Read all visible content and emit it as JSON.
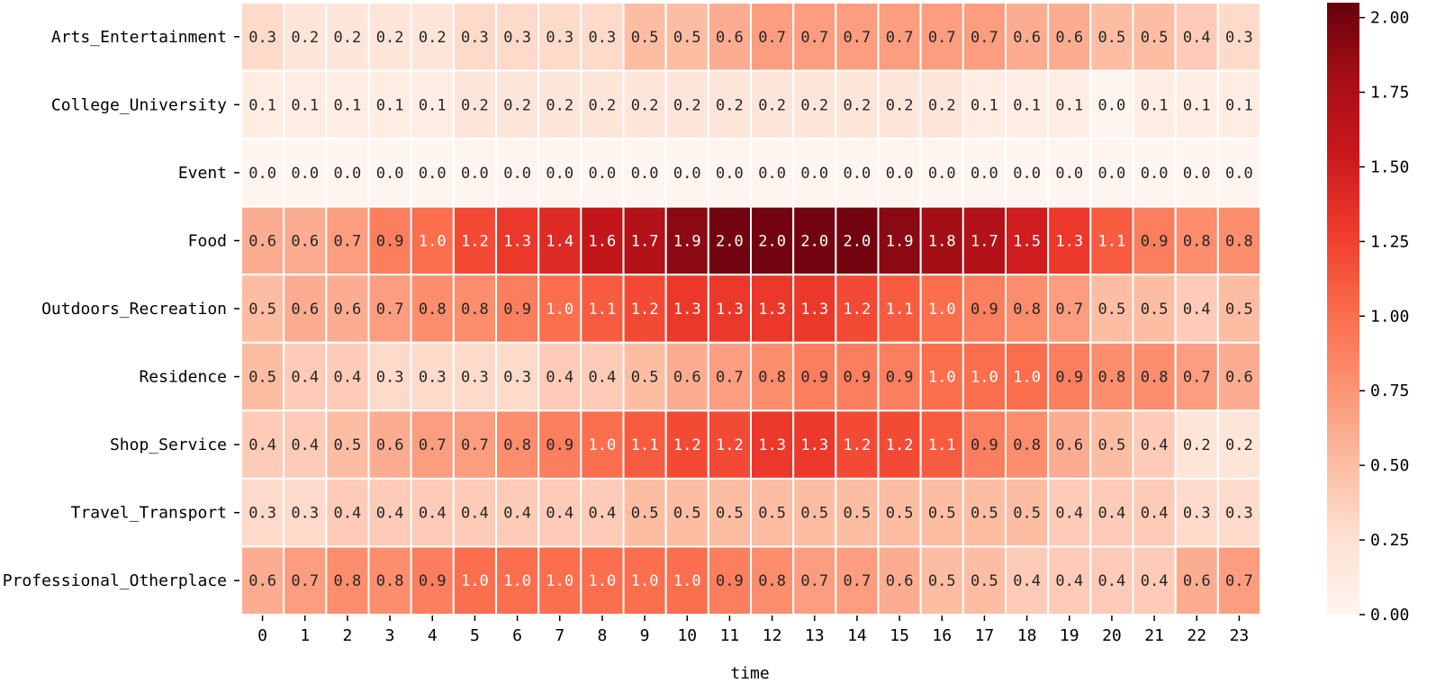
{
  "chart_data": {
    "type": "heatmap",
    "title": "",
    "xlabel": "time",
    "ylabel": "",
    "x_categories": [
      "0",
      "1",
      "2",
      "3",
      "4",
      "5",
      "6",
      "7",
      "8",
      "9",
      "10",
      "11",
      "12",
      "13",
      "14",
      "15",
      "16",
      "17",
      "18",
      "19",
      "20",
      "21",
      "22",
      "23"
    ],
    "y_categories": [
      "Arts_Entertainment",
      "College_University",
      "Event",
      "Food",
      "Outdoors_Recreation",
      "Residence",
      "Shop_Service",
      "Travel_Transport",
      "Professional_Otherplace"
    ],
    "values": [
      [
        0.3,
        0.2,
        0.2,
        0.2,
        0.2,
        0.3,
        0.3,
        0.3,
        0.3,
        0.5,
        0.5,
        0.6,
        0.7,
        0.7,
        0.7,
        0.7,
        0.7,
        0.7,
        0.6,
        0.6,
        0.5,
        0.5,
        0.4,
        0.3
      ],
      [
        0.1,
        0.1,
        0.1,
        0.1,
        0.1,
        0.2,
        0.2,
        0.2,
        0.2,
        0.2,
        0.2,
        0.2,
        0.2,
        0.2,
        0.2,
        0.2,
        0.2,
        0.1,
        0.1,
        0.1,
        0.0,
        0.1,
        0.1,
        0.1
      ],
      [
        0.0,
        0.0,
        0.0,
        0.0,
        0.0,
        0.0,
        0.0,
        0.0,
        0.0,
        0.0,
        0.0,
        0.0,
        0.0,
        0.0,
        0.0,
        0.0,
        0.0,
        0.0,
        0.0,
        0.0,
        0.0,
        0.0,
        0.0,
        0.0
      ],
      [
        0.6,
        0.6,
        0.7,
        0.9,
        1.0,
        1.2,
        1.3,
        1.4,
        1.6,
        1.7,
        1.9,
        2.0,
        2.0,
        2.0,
        2.0,
        1.9,
        1.8,
        1.7,
        1.5,
        1.3,
        1.1,
        0.9,
        0.8,
        0.8
      ],
      [
        0.5,
        0.6,
        0.6,
        0.7,
        0.8,
        0.8,
        0.9,
        1.0,
        1.1,
        1.2,
        1.3,
        1.3,
        1.3,
        1.3,
        1.2,
        1.1,
        1.0,
        0.9,
        0.8,
        0.7,
        0.5,
        0.5,
        0.4,
        0.5
      ],
      [
        0.5,
        0.4,
        0.4,
        0.3,
        0.3,
        0.3,
        0.3,
        0.4,
        0.4,
        0.5,
        0.6,
        0.7,
        0.8,
        0.9,
        0.9,
        0.9,
        1.0,
        1.0,
        1.0,
        0.9,
        0.8,
        0.8,
        0.7,
        0.6
      ],
      [
        0.4,
        0.4,
        0.5,
        0.6,
        0.7,
        0.7,
        0.8,
        0.9,
        1.0,
        1.1,
        1.2,
        1.2,
        1.3,
        1.3,
        1.2,
        1.2,
        1.1,
        0.9,
        0.8,
        0.6,
        0.5,
        0.4,
        0.2,
        0.2
      ],
      [
        0.3,
        0.3,
        0.4,
        0.4,
        0.4,
        0.4,
        0.4,
        0.4,
        0.4,
        0.5,
        0.5,
        0.5,
        0.5,
        0.5,
        0.5,
        0.5,
        0.5,
        0.5,
        0.5,
        0.4,
        0.4,
        0.4,
        0.3,
        0.3
      ],
      [
        0.6,
        0.7,
        0.8,
        0.8,
        0.9,
        1.0,
        1.0,
        1.0,
        1.0,
        1.0,
        1.0,
        0.9,
        0.8,
        0.7,
        0.7,
        0.6,
        0.5,
        0.5,
        0.4,
        0.4,
        0.4,
        0.4,
        0.6,
        0.7
      ]
    ],
    "colorbar": {
      "colormap": "Reds",
      "range": [
        0,
        2.05
      ],
      "ticks": [
        0.0,
        0.25,
        0.5,
        0.75,
        1.0,
        1.25,
        1.5,
        1.75,
        2.0
      ],
      "tick_labels": [
        "0.00",
        "0.25",
        "0.50",
        "0.75",
        "1.00",
        "1.25",
        "1.50",
        "1.75",
        "2.00"
      ]
    },
    "annotations": true,
    "annotation_format": "0.0",
    "colors": {
      "colormap_stops": [
        "#fff5f0",
        "#fee0d2",
        "#fcbba1",
        "#fc9272",
        "#fb6a4a",
        "#ef3b2c",
        "#cb181d",
        "#a50f15",
        "#67000d"
      ],
      "cell_border": "#ffffff",
      "light_text": "#ffffff",
      "dark_text": "#262626"
    }
  }
}
